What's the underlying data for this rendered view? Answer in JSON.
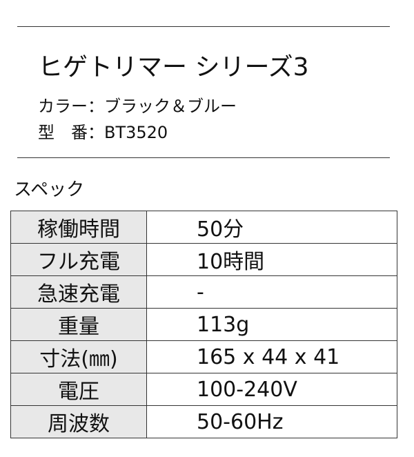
{
  "title": "ヒゲトリマー シリーズ3",
  "color_line": "カラー：ブラック＆ブルー",
  "model_line": "型　番：BT3520",
  "spec_heading": "スペック",
  "specs": [
    {
      "label": "稼働時間",
      "value": "50分"
    },
    {
      "label": "フル充電",
      "value": "10時間"
    },
    {
      "label": "急速充電",
      "value": "-"
    },
    {
      "label": "重量",
      "value": "113g"
    },
    {
      "label": "寸法(㎜)",
      "value": "165 x 44 x 41"
    },
    {
      "label": "電圧",
      "value": "100-240V"
    },
    {
      "label": "周波数",
      "value": "50-60Hz"
    }
  ]
}
